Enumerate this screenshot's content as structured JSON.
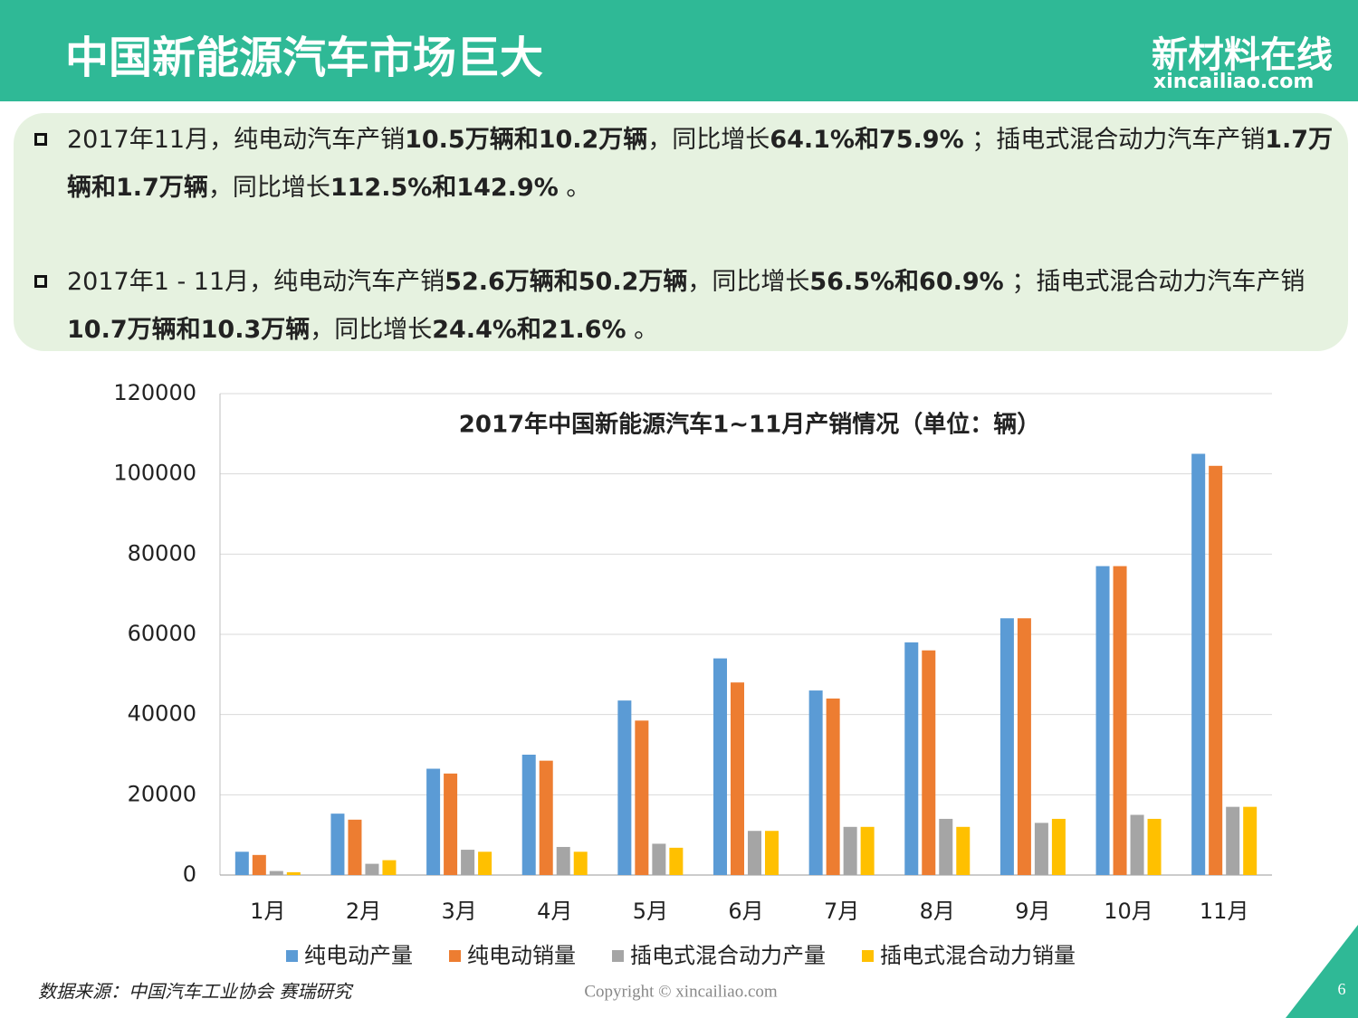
{
  "header": {
    "title": "中国新能源汽车市场巨大",
    "logo": "新材料在线",
    "logo_url": "xincailiao.com"
  },
  "bullets": [
    [
      {
        "text": "2017年11月，纯电动汽车产销",
        "bold": false
      },
      {
        "text": "10.5万辆和10.2万辆",
        "bold": true
      },
      {
        "text": "，同比增长",
        "bold": false
      },
      {
        "text": "64.1%和75.9%",
        "bold": true
      },
      {
        "text": " ；插电式混合动力汽车产销",
        "bold": false
      },
      {
        "text": "1.7万辆和1.7万辆",
        "bold": true
      },
      {
        "text": "，同比增长",
        "bold": false
      },
      {
        "text": "112.5%和142.9%",
        "bold": true
      },
      {
        "text": " 。",
        "bold": false
      }
    ],
    [
      {
        "text": "2017年1 - 11月，纯电动汽车产销",
        "bold": false
      },
      {
        "text": "52.6万辆和50.2万辆",
        "bold": true
      },
      {
        "text": "，同比增长",
        "bold": false
      },
      {
        "text": "56.5%和60.9%",
        "bold": true
      },
      {
        "text": " ；插电式混合动力汽车产销",
        "bold": false
      },
      {
        "text": "10.7万辆和10.3万辆",
        "bold": true
      },
      {
        "text": "，同比增长",
        "bold": false
      },
      {
        "text": "24.4%和21.6%",
        "bold": true
      },
      {
        "text": " 。",
        "bold": false
      }
    ]
  ],
  "chart_data": {
    "type": "bar",
    "title": "2017年中国新能源汽车1~11月产销情况（单位：辆）",
    "categories": [
      "1月",
      "2月",
      "3月",
      "4月",
      "5月",
      "6月",
      "7月",
      "8月",
      "9月",
      "10月",
      "11月"
    ],
    "series": [
      {
        "name": "纯电动产量",
        "color": "#5b9bd5",
        "values": [
          5800,
          15300,
          26500,
          30000,
          43500,
          54000,
          46000,
          58000,
          64000,
          77000,
          105000
        ]
      },
      {
        "name": "纯电动销量",
        "color": "#ed7d31",
        "values": [
          5000,
          13800,
          25300,
          28500,
          38500,
          48000,
          44000,
          56000,
          64000,
          77000,
          102000
        ]
      },
      {
        "name": "插电式混合动力产量",
        "color": "#a5a5a5",
        "values": [
          1000,
          2800,
          6300,
          7000,
          7800,
          11000,
          12000,
          14000,
          13000,
          15000,
          17000
        ]
      },
      {
        "name": "插电式混合动力销量",
        "color": "#ffc000",
        "values": [
          700,
          3700,
          5800,
          5800,
          6800,
          11000,
          12000,
          12000,
          14000,
          14000,
          17000
        ]
      }
    ],
    "ylim": [
      0,
      120000
    ],
    "yticks": [
      0,
      20000,
      40000,
      60000,
      80000,
      100000,
      120000
    ],
    "grid": true,
    "legend": "bottom"
  },
  "footer": {
    "source": "数据来源：中国汽车工业协会 赛瑞研究",
    "copyright": "Copyright © xincailiao.com",
    "page": "6"
  }
}
